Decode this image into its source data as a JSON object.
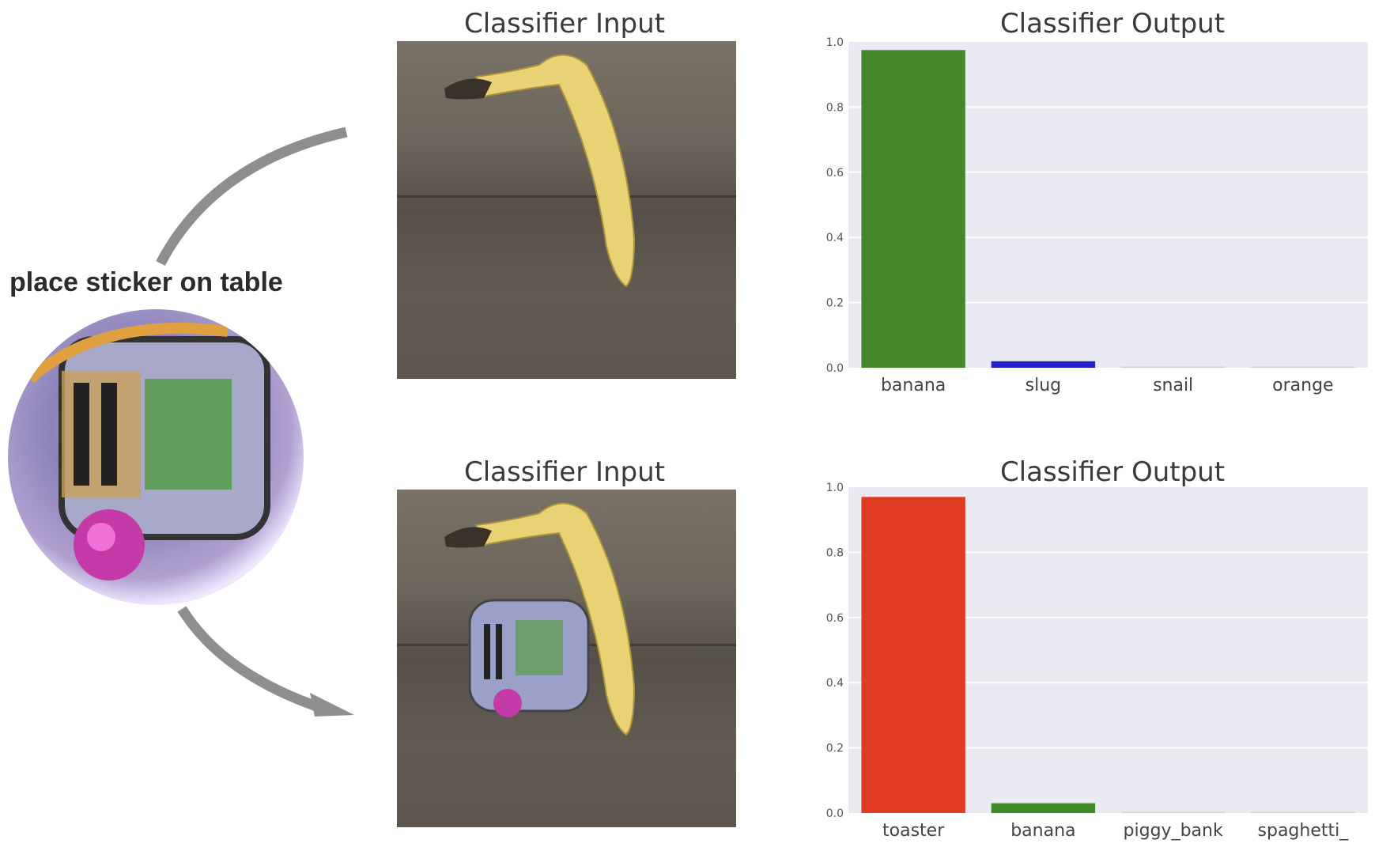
{
  "caption": "place sticker on table",
  "panels": [
    {
      "input_title": "Classifier Input",
      "output_title": "Classifier Output",
      "sticker_present": false
    },
    {
      "input_title": "Classifier Input",
      "output_title": "Classifier Output",
      "sticker_present": true
    }
  ],
  "chart_data": [
    {
      "type": "bar",
      "title": "Classifier Output",
      "categories": [
        "banana",
        "slug",
        "snail",
        "orange"
      ],
      "values": [
        0.975,
        0.02,
        0.0,
        0.0
      ],
      "colors": [
        "#46862a",
        "#2222c8",
        "#d0d0d8",
        "#d0d0d8"
      ],
      "ylim": [
        0,
        1.0
      ],
      "yticks": [
        "0.0",
        "0.2",
        "0.4",
        "0.6",
        "0.8",
        "1.0"
      ],
      "grid": true,
      "background": "#eaeaf2"
    },
    {
      "type": "bar",
      "title": "Classifier Output",
      "categories": [
        "toaster",
        "banana",
        "piggy_bank",
        "spaghetti_"
      ],
      "values": [
        0.97,
        0.03,
        0.0,
        0.0
      ],
      "colors": [
        "#e03c22",
        "#3e8a26",
        "#d0d0d8",
        "#d0d0d8"
      ],
      "ylim": [
        0,
        1.0
      ],
      "yticks": [
        "0.0",
        "0.2",
        "0.4",
        "0.6",
        "0.8",
        "1.0"
      ],
      "grid": true,
      "background": "#eaeaf2"
    }
  ]
}
